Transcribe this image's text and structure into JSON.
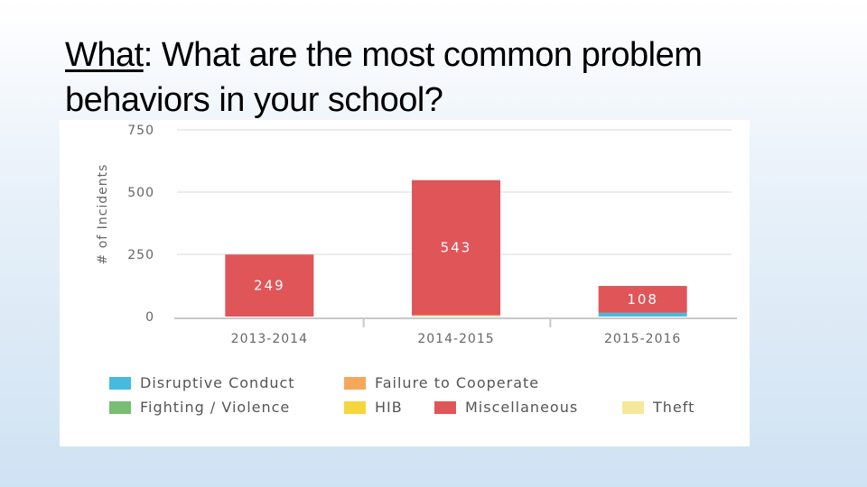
{
  "slide": {
    "title_keyword": "What",
    "title_rest": ":  What are the most common problem behaviors in your school?"
  },
  "chart_data": {
    "type": "bar",
    "stacked": true,
    "ylabel": "# of Incidents",
    "ylim": [
      0,
      750
    ],
    "yticks": [
      0,
      250,
      500,
      750
    ],
    "grid": true,
    "legend_position": "bottom",
    "categories": [
      "2013-2014",
      "2014-2015",
      "2015-2016"
    ],
    "series": [
      {
        "name": "Disruptive Conduct",
        "color": "#45bcdf",
        "values": [
          0,
          0,
          15
        ]
      },
      {
        "name": "Failure to Cooperate",
        "color": "#f5a85a",
        "values": [
          0,
          0,
          0
        ]
      },
      {
        "name": "Fighting / Violence",
        "color": "#77bd73",
        "values": [
          0,
          0,
          0
        ]
      },
      {
        "name": "HIB",
        "color": "#f5d63d",
        "values": [
          0,
          0,
          0
        ]
      },
      {
        "name": "Miscellaneous",
        "color": "#e05558",
        "values": [
          249,
          543,
          108
        ]
      },
      {
        "name": "Theft",
        "color": "#f5e89a",
        "values": [
          0,
          5,
          0
        ]
      }
    ],
    "data_labels": [
      {
        "series": "Miscellaneous",
        "category": "2013-2014",
        "text": "249"
      },
      {
        "series": "Miscellaneous",
        "category": "2014-2015",
        "text": "543"
      },
      {
        "series": "Miscellaneous",
        "category": "2015-2016",
        "text": "108"
      }
    ]
  }
}
